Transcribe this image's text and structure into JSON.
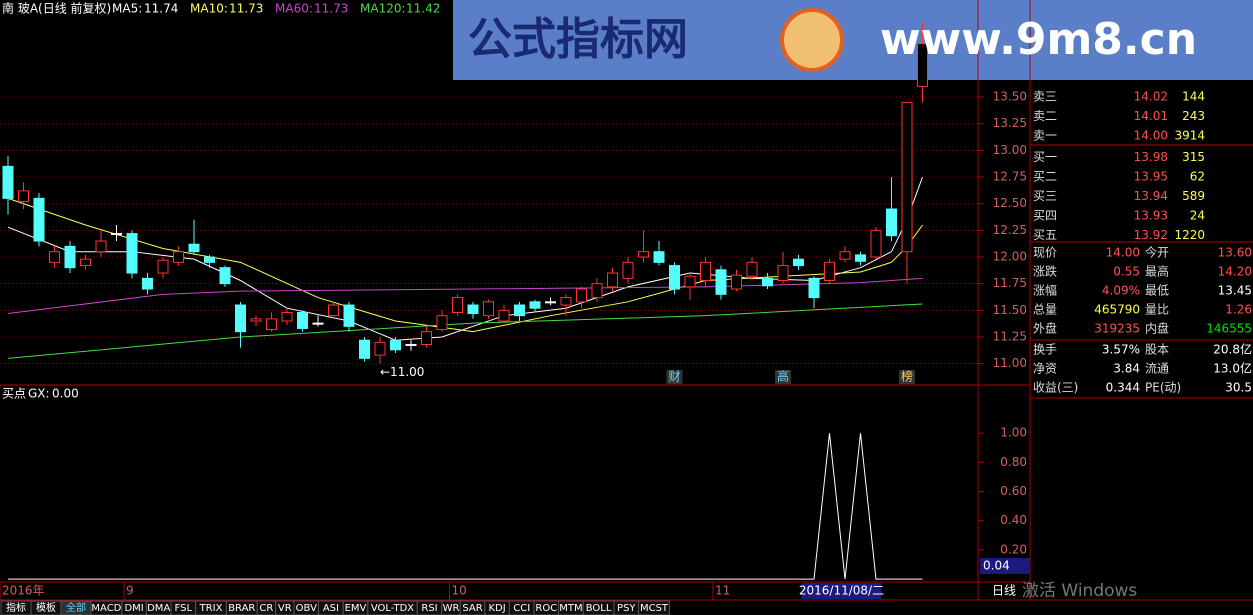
{
  "chart_data": [
    {
      "type": "candlestick",
      "title": "南 玻A(日线 前复权)",
      "open": [
        12.85,
        12.52,
        12.55,
        11.95,
        12.1,
        11.92,
        12.05,
        12.22,
        12.22,
        11.8,
        11.85,
        11.95,
        12.12,
        12.0,
        11.9,
        11.55,
        11.4,
        11.32,
        11.4,
        11.48,
        11.38,
        11.45,
        11.55,
        11.22,
        11.08,
        11.22,
        11.18,
        11.18,
        11.32,
        11.48,
        11.55,
        11.45,
        11.4,
        11.55,
        11.58,
        11.58,
        11.55,
        11.58,
        11.62,
        11.72,
        11.8,
        12.0,
        12.05,
        11.92,
        11.72,
        11.78,
        11.88,
        11.7,
        11.82,
        11.8,
        11.78,
        11.98,
        11.8,
        11.78,
        11.98,
        12.02,
        12.0,
        12.45,
        12.05,
        13.6
      ],
      "close": [
        12.55,
        12.62,
        12.15,
        12.05,
        11.9,
        11.98,
        12.15,
        12.22,
        11.85,
        11.7,
        11.97,
        12.05,
        12.05,
        11.95,
        11.75,
        11.3,
        11.42,
        11.42,
        11.48,
        11.33,
        11.38,
        11.55,
        11.35,
        11.05,
        11.2,
        11.13,
        11.18,
        11.3,
        11.45,
        11.62,
        11.47,
        11.58,
        11.5,
        11.45,
        11.52,
        11.58,
        11.62,
        11.7,
        11.75,
        11.85,
        11.95,
        12.05,
        11.95,
        11.7,
        11.82,
        11.95,
        11.65,
        11.83,
        11.95,
        11.73,
        11.92,
        11.92,
        11.62,
        11.95,
        12.05,
        11.96,
        12.25,
        12.2,
        13.45,
        14.0
      ],
      "high": [
        12.95,
        12.7,
        12.6,
        12.1,
        12.15,
        12.02,
        12.25,
        12.3,
        12.25,
        11.85,
        12.0,
        12.1,
        12.35,
        12.02,
        11.92,
        11.58,
        11.45,
        11.48,
        11.52,
        11.5,
        11.45,
        11.58,
        11.58,
        11.25,
        11.25,
        11.25,
        11.22,
        11.35,
        11.5,
        11.65,
        11.58,
        11.6,
        11.55,
        11.58,
        11.6,
        11.62,
        11.65,
        11.72,
        11.8,
        11.9,
        12.0,
        12.25,
        12.15,
        11.95,
        11.85,
        12.0,
        11.92,
        11.88,
        12.0,
        11.85,
        12.05,
        12.02,
        11.82,
        11.98,
        12.1,
        12.05,
        12.28,
        12.75,
        13.45,
        14.2
      ],
      "low": [
        12.4,
        12.45,
        12.1,
        11.9,
        11.85,
        11.88,
        12.0,
        12.15,
        11.8,
        11.65,
        11.8,
        11.92,
        12.02,
        11.9,
        11.72,
        11.15,
        11.35,
        11.3,
        11.36,
        11.3,
        11.35,
        11.42,
        11.3,
        11.02,
        11.0,
        11.1,
        11.12,
        11.15,
        11.3,
        11.45,
        11.42,
        11.42,
        11.38,
        11.4,
        11.48,
        11.55,
        11.45,
        11.52,
        11.58,
        11.68,
        11.75,
        11.95,
        11.92,
        11.65,
        11.6,
        11.72,
        11.6,
        11.68,
        11.78,
        11.7,
        11.75,
        11.88,
        11.52,
        11.75,
        11.95,
        11.92,
        11.98,
        12.15,
        11.75,
        13.45
      ],
      "up_color": "#ff3232",
      "down_color": "#54fcfc",
      "series": [
        {
          "name": "MA5:",
          "current": 11.74,
          "color": "#ffffff",
          "x": [
            0,
            4,
            8,
            12,
            15,
            18,
            22,
            25,
            28,
            32,
            36,
            40,
            44,
            48,
            52,
            55,
            57,
            58,
            59
          ],
          "values": [
            12.28,
            12.05,
            12.05,
            11.98,
            11.78,
            11.52,
            11.4,
            11.22,
            11.25,
            11.45,
            11.52,
            11.72,
            11.85,
            11.8,
            11.78,
            11.9,
            12.05,
            12.35,
            12.75
          ]
        },
        {
          "name": "MA10:",
          "current": 11.73,
          "color": "#ffff54",
          "x": [
            0,
            5,
            10,
            15,
            20,
            25,
            30,
            35,
            40,
            45,
            50,
            55,
            57,
            58,
            59
          ],
          "values": [
            12.55,
            12.3,
            12.08,
            11.95,
            11.62,
            11.4,
            11.3,
            11.45,
            11.58,
            11.78,
            11.82,
            11.86,
            11.95,
            12.1,
            12.3
          ]
        },
        {
          "name": "MA60:",
          "current": 11.73,
          "color": "#cc44cc",
          "x": [
            0,
            10,
            15,
            30,
            45,
            55,
            59
          ],
          "values": [
            11.47,
            11.65,
            11.68,
            11.7,
            11.72,
            11.76,
            11.8
          ]
        },
        {
          "name": "MA120:",
          "current": 11.42,
          "color": "#44dd44",
          "x": [
            0,
            15,
            30,
            45,
            59
          ],
          "values": [
            11.05,
            11.25,
            11.38,
            11.45,
            11.56
          ]
        }
      ],
      "ylim": [
        10.8,
        14.41
      ],
      "yticks": [
        {
          "value": 11,
          "label": "11.00"
        },
        {
          "value": 11.25,
          "label": "11.25"
        },
        {
          "value": 11.5,
          "label": "11.50"
        },
        {
          "value": 11.75,
          "label": "11.75"
        },
        {
          "value": 12,
          "label": "12.00"
        },
        {
          "value": 12.25,
          "label": "12.25"
        },
        {
          "value": 12.5,
          "label": "12.50"
        },
        {
          "value": 12.75,
          "label": "12.75"
        },
        {
          "value": 13,
          "label": "13.00"
        },
        {
          "value": 13.25,
          "label": "13.25"
        },
        {
          "value": 13.5,
          "label": "13.50"
        }
      ],
      "xticks": [
        {
          "value": 0,
          "label": "2016年"
        },
        {
          "value": 8,
          "label": "9"
        },
        {
          "value": 29,
          "label": "10"
        },
        {
          "value": 46,
          "label": "11"
        }
      ],
      "cursor": {
        "value": 53,
        "label": "2016/11/08/二"
      },
      "annotations": [
        {
          "x": 24,
          "label": "←11.00"
        }
      ],
      "events": [
        {
          "x": 43,
          "label": "财"
        },
        {
          "x": 50,
          "label": "高"
        },
        {
          "x": 58,
          "label": "榜"
        }
      ],
      "grid": true
    },
    {
      "type": "line",
      "title": "买点",
      "series": [
        {
          "name": "GX:",
          "current": "0.00",
          "color": "#ffffff",
          "values": [
            0,
            0,
            0,
            0,
            0,
            0,
            0,
            0,
            0,
            0,
            0,
            0,
            0,
            0,
            0,
            0,
            0,
            0,
            0,
            0,
            0,
            0,
            0,
            0,
            0,
            0,
            0,
            0,
            0,
            0,
            0,
            0,
            0,
            0,
            0,
            0,
            0,
            0,
            0,
            0,
            0,
            0,
            0,
            0,
            0,
            0,
            0,
            0,
            0,
            0,
            0,
            0,
            0,
            1,
            0,
            1,
            0,
            0,
            0,
            0
          ]
        }
      ],
      "ylim": [
        -0.02,
        1.33
      ],
      "yticks": [
        {
          "value": 0.2,
          "label": "0.20"
        },
        {
          "value": 0.4,
          "label": "0.40"
        },
        {
          "value": 0.6,
          "label": "0.60"
        },
        {
          "value": 0.8,
          "label": "0.80"
        },
        {
          "value": 1,
          "label": "1.00"
        }
      ],
      "y_cursor_label": "0.04"
    }
  ],
  "banner": {
    "title": "公式指标网",
    "url": "www.9m8.cn"
  },
  "order_book": [
    {
      "label": "卖三",
      "price": "14.02",
      "volume": "144"
    },
    {
      "label": "卖二",
      "price": "14.01",
      "volume": "243"
    },
    {
      "label": "卖一",
      "price": "14.00",
      "volume": "3914"
    },
    {
      "label": "买一",
      "price": "13.98",
      "volume": "315"
    },
    {
      "label": "买二",
      "price": "13.95",
      "volume": "62"
    },
    {
      "label": "买三",
      "price": "13.94",
      "volume": "589"
    },
    {
      "label": "买四",
      "price": "13.93",
      "volume": "24"
    },
    {
      "label": "买五",
      "price": "13.92",
      "volume": "1220"
    }
  ],
  "quote_stats": [
    {
      "label": "现价",
      "value": "14.00",
      "color": "#ff5050",
      "label2": "今开",
      "value2": "13.60",
      "color2": "#ff5050"
    },
    {
      "label": "涨跌",
      "value": "0.55",
      "color": "#ff5050",
      "label2": "最高",
      "value2": "14.20",
      "color2": "#ff5050"
    },
    {
      "label": "涨幅",
      "value": "4.09%",
      "color": "#ff5050",
      "label2": "最低",
      "value2": "13.45",
      "color2": "#ffffff"
    },
    {
      "label": "总量",
      "value": "465790",
      "color": "#ffff54",
      "label2": "量比",
      "value2": "1.26",
      "color2": "#ff5050"
    },
    {
      "label": "外盘",
      "value": "319235",
      "color": "#ff5050",
      "label2": "内盘",
      "value2": "146555",
      "color2": "#00e000"
    },
    {
      "label": "换手",
      "value": "3.57%",
      "color": "#ffffff",
      "label2": "股本",
      "value2": "20.8亿",
      "color2": "#ffffff"
    },
    {
      "label": "净资",
      "value": "3.84",
      "color": "#ffffff",
      "label2": "流通",
      "value2": "13.0亿",
      "color2": "#ffffff"
    },
    {
      "label": "收益(三)",
      "value": "0.344",
      "color": "#ffffff",
      "label2": "PE(动)",
      "value2": "30.5",
      "color2": "#ffffff"
    }
  ],
  "tabs": [
    "指标",
    "模板",
    "全部",
    "MACD",
    "DMI",
    "DMA",
    "FSL",
    "TRIX",
    "BRAR",
    "CR",
    "VR",
    "OBV",
    "ASI",
    "EMV",
    "VOL-TDX",
    "RSI",
    "WR",
    "SAR",
    "KDJ",
    "CCI",
    "ROC",
    "MTM",
    "BOLL",
    "PSY",
    "MCST"
  ],
  "period_label": "日线",
  "watermark": "激活 Windows"
}
